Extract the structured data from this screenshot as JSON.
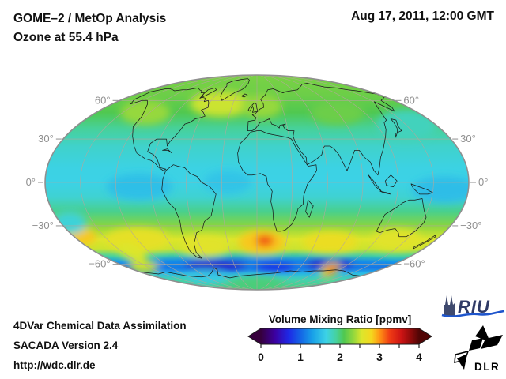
{
  "header": {
    "title_line1": "GOME–2 / MetOp Analysis",
    "title_line2": "Ozone at 55.4 hPa",
    "datetime": "Aug 17, 2011, 12:00 GMT"
  },
  "footer": {
    "line1": "4DVar Chemical Data Assimilation",
    "line2": "SACADA Version 2.4",
    "line3": "http://wdc.dlr.de"
  },
  "colorbar": {
    "title": "Volume Mixing Ratio [ppmv]",
    "tick_labels": [
      "0",
      "1",
      "2",
      "3",
      "4"
    ],
    "min": 0,
    "max": 4
  },
  "map": {
    "lat_labels": [
      {
        "lat": 60,
        "text": "60°"
      },
      {
        "lat": 30,
        "text": "30°"
      },
      {
        "lat": 0,
        "text": "0°"
      },
      {
        "lat": -30,
        "text": "−30°"
      },
      {
        "lat": -60,
        "text": "−60°"
      }
    ]
  },
  "logos": {
    "riu_text": "RIU",
    "dlr_text": "DLR"
  },
  "chart_data": {
    "type": "heatmap",
    "projection": "mollweide",
    "variable": "Ozone volume mixing ratio",
    "level": "55.4 hPa",
    "instrument": "GOME–2 / MetOp",
    "datetime": "Aug 17, 2011, 12:00 GMT",
    "units": "ppmv",
    "value_range": [
      0,
      4
    ],
    "colorbar_ticks": [
      0,
      1,
      2,
      3,
      4
    ],
    "lat_gridlines": [
      -60,
      -30,
      0,
      30,
      60
    ],
    "lon_gridline_step": 30,
    "colormap_stops": [
      [
        0.0,
        "#36003c"
      ],
      [
        0.35,
        "#3c00a0"
      ],
      [
        0.7,
        "#1e28e6"
      ],
      [
        1.0,
        "#1464e6"
      ],
      [
        1.3,
        "#18a0e8"
      ],
      [
        1.65,
        "#3cd2e6"
      ],
      [
        1.9,
        "#46d2a0"
      ],
      [
        2.1,
        "#50c850"
      ],
      [
        2.35,
        "#96d83c"
      ],
      [
        2.55,
        "#dce62c"
      ],
      [
        2.8,
        "#f5d71e"
      ],
      [
        3.0,
        "#ff9614"
      ],
      [
        3.25,
        "#f03c14"
      ],
      [
        3.55,
        "#cd1414"
      ],
      [
        3.8,
        "#8c0a0a"
      ],
      [
        4.0,
        "#500505"
      ]
    ],
    "zonal_mean_profile_ppmv": [
      [
        90,
        2.25
      ],
      [
        65,
        2.2
      ],
      [
        50,
        2.1
      ],
      [
        38,
        1.92
      ],
      [
        25,
        1.75
      ],
      [
        10,
        1.66
      ],
      [
        0,
        1.65
      ],
      [
        -10,
        1.72
      ],
      [
        -20,
        1.95
      ],
      [
        -30,
        2.3
      ],
      [
        -40,
        2.55
      ],
      [
        -47,
        2.5
      ],
      [
        -53,
        1.9
      ],
      [
        -58,
        1.25
      ],
      [
        -63,
        1.05
      ],
      [
        -68,
        1.5
      ],
      [
        -75,
        1.85
      ],
      [
        -90,
        2.0
      ]
    ],
    "features": [
      {
        "name": "north-atlantic-high",
        "lon": -45,
        "lat": 57,
        "vmr": 2.5,
        "rlon": 38,
        "rlat": 11
      },
      {
        "name": "nw-america-high",
        "lon": -125,
        "lat": 50,
        "vmr": 2.35,
        "rlon": 28,
        "rlat": 10
      },
      {
        "name": "europe-high",
        "lon": 5,
        "lat": 55,
        "vmr": 2.35,
        "rlon": 25,
        "rlat": 10
      },
      {
        "name": "east-asia-low",
        "lon": 150,
        "lat": 40,
        "vmr": 1.8,
        "rlon": 30,
        "rlat": 12
      },
      {
        "name": "central-asia",
        "lon": 90,
        "lat": 50,
        "vmr": 2.2,
        "rlon": 30,
        "rlat": 10
      },
      {
        "name": "epacific-equator-low",
        "lon": -100,
        "lat": -3,
        "vmr": 1.52,
        "rlon": 28,
        "rlat": 9
      },
      {
        "name": "atlantic-equator-low",
        "lon": -25,
        "lat": 0,
        "vmr": 1.55,
        "rlon": 20,
        "rlat": 8
      },
      {
        "name": "wpacific-equator-low",
        "lon": 160,
        "lat": -5,
        "vmr": 1.5,
        "rlon": 28,
        "rlat": 9
      },
      {
        "name": "spacific-band-high",
        "lon": -120,
        "lat": -40,
        "vmr": 2.65,
        "rlon": 32,
        "rlat": 9
      },
      {
        "name": "satlantic-band-high",
        "lon": -55,
        "lat": -45,
        "vmr": 2.6,
        "rlon": 25,
        "rlat": 8
      },
      {
        "name": "safrica-band-high",
        "lon": 5,
        "lat": -42,
        "vmr": 2.85,
        "rlon": 24,
        "rlat": 9
      },
      {
        "name": "safrica-core-high",
        "lon": 8,
        "lat": -41,
        "vmr": 3.25,
        "rlon": 9,
        "rlat": 4
      },
      {
        "name": "sindian-band-high",
        "lon": 75,
        "lat": -42,
        "vmr": 2.7,
        "rlon": 28,
        "rlat": 8
      },
      {
        "name": "spacific-west-band-high",
        "lon": 140,
        "lat": -40,
        "vmr": 2.6,
        "rlon": 25,
        "rlat": 8
      },
      {
        "name": "dateline-high",
        "lon": -172,
        "lat": -38,
        "vmr": 2.85,
        "rlon": 14,
        "rlat": 6
      },
      {
        "name": "sw-pacific-cool",
        "lon": -172,
        "lat": -28,
        "vmr": 1.7,
        "rlon": 16,
        "rlat": 8
      },
      {
        "name": "left-diagonal-streak",
        "lon": -140,
        "lat": -50,
        "vmr": 2.55,
        "rlon": 18,
        "rlat": 6,
        "rot": 25
      },
      {
        "name": "antarctic-vortex-band",
        "lon": 0,
        "lat": -60,
        "vmr": 1.15,
        "rlon": 175,
        "rlat": 5
      },
      {
        "name": "vortex-core-atlantic",
        "lon": -55,
        "lat": -61,
        "vmr": 0.55,
        "rlon": 42,
        "rlat": 4.5
      },
      {
        "name": "vortex-core-africa",
        "lon": 25,
        "lat": -62,
        "vmr": 0.7,
        "rlon": 28,
        "rlat": 4
      },
      {
        "name": "vortex-core-indian",
        "lon": 95,
        "lat": -60,
        "vmr": 0.55,
        "rlon": 32,
        "rlat": 4.5
      },
      {
        "name": "vortex-filament-warm",
        "lon": 107,
        "lat": -65,
        "vmr": 2.7,
        "rlon": 16,
        "rlat": 6,
        "rot": -30
      },
      {
        "name": "vortex-filament-core",
        "lon": 108,
        "lat": -64.5,
        "vmr": 3.3,
        "rlon": 10,
        "rlat": 3,
        "rot": -30
      },
      {
        "name": "bottom-left-warm",
        "lon": -155,
        "lat": -62,
        "vmr": 2.5,
        "rlon": 20,
        "rlat": 6
      },
      {
        "name": "polar-interior-green",
        "lon": 0,
        "lat": -80,
        "vmr": 2.0,
        "rlon": 70,
        "rlat": 9
      },
      {
        "name": "polar-interior-cyan",
        "lon": -90,
        "lat": -72,
        "vmr": 1.6,
        "rlon": 35,
        "rlat": 7
      }
    ]
  }
}
